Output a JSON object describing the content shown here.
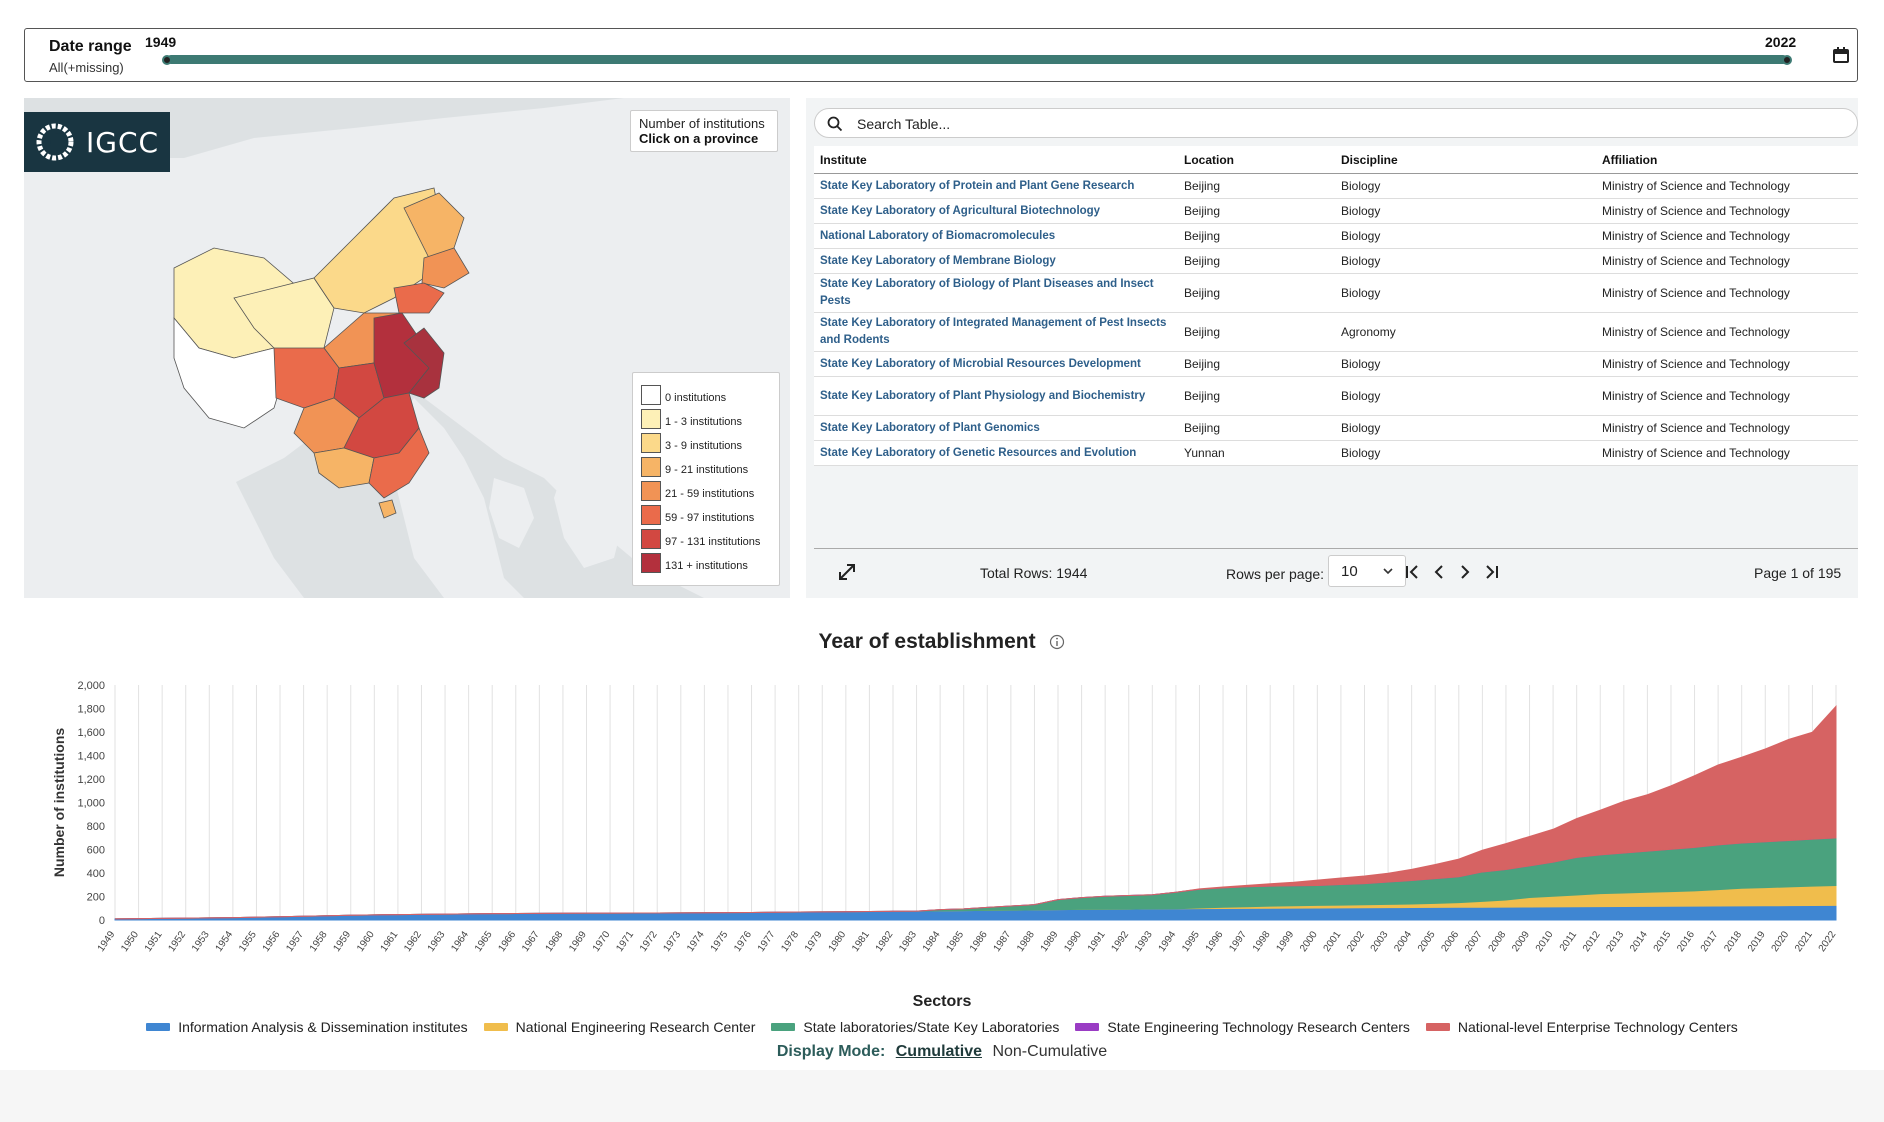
{
  "date_range": {
    "title": "Date range",
    "subtitle": "All(+missing)",
    "min_label": "1949",
    "max_label": "2022",
    "start": 1949,
    "end": 2022,
    "track_color": "#3d7a73"
  },
  "map": {
    "logo_text": "IGCC",
    "tooltip_line1": "Number of institutions",
    "tooltip_line2": "Click on a province",
    "legend": [
      {
        "label": "0 institutions",
        "color": "#ffffff"
      },
      {
        "label": "1 - 3 institutions",
        "color": "#fdf0b7"
      },
      {
        "label": "3 - 9 institutions",
        "color": "#fbd98a"
      },
      {
        "label": "9 - 21 institutions",
        "color": "#f6b466"
      },
      {
        "label": "21 - 59 institutions",
        "color": "#f19355"
      },
      {
        "label": "59 - 97 institutions",
        "color": "#ea6b4b"
      },
      {
        "label": "97 - 131 institutions",
        "color": "#d24841"
      },
      {
        "label": "131 + institutions",
        "color": "#b3303d"
      }
    ]
  },
  "table": {
    "search_placeholder": "Search Table...",
    "columns": [
      "Institute",
      "Location",
      "Discipline",
      "Affiliation"
    ],
    "rows": [
      [
        "State Key Laboratory of Protein and Plant Gene Research",
        "Beijing",
        "Biology",
        "Ministry of Science and Technology"
      ],
      [
        "State Key Laboratory of Agricultural Biotechnology",
        "Beijing",
        "Biology",
        "Ministry of Science and Technology"
      ],
      [
        "National Laboratory of Biomacromolecules",
        "Beijing",
        "Biology",
        "Ministry of Science and Technology"
      ],
      [
        "State Key Laboratory of Membrane Biology",
        "Beijing",
        "Biology",
        "Ministry of Science and Technology"
      ],
      [
        "State Key Laboratory of Biology of Plant Diseases and Insect Pests",
        "Beijing",
        "Biology",
        "Ministry of Science and Technology"
      ],
      [
        "State Key Laboratory of Integrated Management of Pest Insects and Rodents",
        "Beijing",
        "Agronomy",
        "Ministry of Science and Technology"
      ],
      [
        "State Key Laboratory of Microbial Resources Development",
        "Beijing",
        "Biology",
        "Ministry of Science and Technology"
      ],
      [
        "State Key Laboratory of Plant Physiology and Biochemistry",
        "Beijing",
        "Biology",
        "Ministry of Science and Technology"
      ],
      [
        "State Key Laboratory of Plant Genomics",
        "Beijing",
        "Biology",
        "Ministry of Science and Technology"
      ],
      [
        "State Key Laboratory of Genetic Resources and Evolution",
        "Yunnan",
        "Biology",
        "Ministry of Science and Technology"
      ]
    ],
    "total_rows": "Total Rows: 1944",
    "rows_per_page_label": "Rows per page:",
    "rows_per_page_value": "10",
    "page_info": "Page 1 of 195"
  },
  "chart_title": "Year of establishment",
  "chart_data": {
    "type": "area",
    "title": "Year of establishment",
    "xlabel": "",
    "ylabel": "Number of institutions",
    "ylim": [
      0,
      2000
    ],
    "yticks": [
      "0",
      "200",
      "400",
      "600",
      "800",
      "1,000",
      "1,200",
      "1,400",
      "1,600",
      "1,800",
      "2,000"
    ],
    "ytick_values": [
      0,
      200,
      400,
      600,
      800,
      1000,
      1200,
      1400,
      1600,
      1800,
      2000
    ],
    "x_start": 1949,
    "x_end": 2022,
    "x": [
      1949,
      1950,
      1951,
      1952,
      1953,
      1954,
      1955,
      1956,
      1957,
      1958,
      1959,
      1960,
      1961,
      1962,
      1963,
      1964,
      1965,
      1966,
      1967,
      1968,
      1969,
      1970,
      1971,
      1972,
      1973,
      1974,
      1975,
      1976,
      1977,
      1978,
      1979,
      1980,
      1981,
      1982,
      1983,
      1984,
      1985,
      1986,
      1987,
      1988,
      1989,
      1990,
      1991,
      1992,
      1993,
      1994,
      1995,
      1996,
      1997,
      1998,
      1999,
      2000,
      2001,
      2002,
      2003,
      2004,
      2005,
      2006,
      2007,
      2008,
      2009,
      2010,
      2011,
      2012,
      2013,
      2014,
      2015,
      2016,
      2017,
      2018,
      2019,
      2020,
      2021,
      2022
    ],
    "grid": true,
    "stacked": true,
    "legend_title": "Sectors",
    "legend_position": "bottom",
    "series": [
      {
        "name": "Information Analysis & Dissemination institutes",
        "color": "#3f86d2",
        "values": [
          10,
          12,
          14,
          16,
          18,
          20,
          24,
          28,
          32,
          36,
          40,
          44,
          46,
          48,
          50,
          52,
          54,
          55,
          56,
          57,
          58,
          59,
          60,
          60,
          61,
          62,
          63,
          64,
          66,
          68,
          69,
          70,
          72,
          74,
          76,
          78,
          80,
          82,
          84,
          86,
          88,
          90,
          92,
          93,
          95,
          96,
          97,
          98,
          99,
          100,
          101,
          102,
          103,
          104,
          105,
          106,
          107,
          108,
          109,
          110,
          111,
          112,
          113,
          114,
          115,
          116,
          117,
          118,
          119,
          120,
          121,
          122,
          123,
          124
        ]
      },
      {
        "name": "National Engineering Research Center",
        "color": "#f0bd4c",
        "values": [
          0,
          0,
          0,
          0,
          0,
          0,
          0,
          0,
          0,
          0,
          0,
          0,
          0,
          0,
          0,
          0,
          0,
          0,
          0,
          0,
          0,
          0,
          0,
          0,
          0,
          0,
          0,
          0,
          0,
          0,
          0,
          0,
          0,
          0,
          0,
          0,
          0,
          0,
          0,
          0,
          0,
          0,
          0,
          0,
          0,
          0,
          5,
          10,
          14,
          18,
          20,
          22,
          24,
          26,
          28,
          30,
          35,
          40,
          50,
          60,
          80,
          90,
          100,
          110,
          115,
          120,
          125,
          130,
          140,
          150,
          155,
          160,
          165,
          170
        ]
      },
      {
        "name": "State laboratories/State Key Laboratories",
        "color": "#4aa27e",
        "values": [
          0,
          0,
          0,
          0,
          0,
          0,
          0,
          0,
          0,
          0,
          0,
          0,
          0,
          0,
          0,
          0,
          0,
          0,
          0,
          0,
          0,
          0,
          0,
          0,
          0,
          0,
          0,
          0,
          0,
          0,
          0,
          0,
          0,
          0,
          0,
          10,
          15,
          25,
          35,
          45,
          85,
          100,
          110,
          115,
          120,
          140,
          160,
          165,
          170,
          170,
          170,
          170,
          175,
          180,
          190,
          200,
          210,
          220,
          250,
          260,
          270,
          290,
          320,
          330,
          340,
          350,
          360,
          370,
          380,
          385,
          390,
          395,
          400,
          405
        ]
      },
      {
        "name": "State Engineering Technology Research Centers",
        "color": "#9a3cc4",
        "values": [
          0,
          0,
          0,
          0,
          0,
          0,
          0,
          0,
          0,
          0,
          0,
          0,
          0,
          0,
          0,
          0,
          0,
          0,
          0,
          0,
          0,
          0,
          0,
          0,
          0,
          0,
          0,
          0,
          0,
          0,
          0,
          0,
          0,
          0,
          0,
          0,
          0,
          0,
          0,
          0,
          0,
          0,
          0,
          0,
          0,
          0,
          0,
          0,
          0,
          0,
          0,
          0,
          0,
          0,
          0,
          0,
          0,
          0,
          0,
          0,
          0,
          0,
          0,
          0,
          0,
          0,
          0,
          0,
          0,
          0,
          0,
          0,
          0,
          0
        ]
      },
      {
        "name": "National-level Enterprise Technology Centers",
        "color": "#d66363",
        "values": [
          0,
          0,
          0,
          0,
          0,
          0,
          0,
          0,
          0,
          0,
          0,
          0,
          0,
          0,
          0,
          0,
          0,
          0,
          0,
          0,
          0,
          0,
          0,
          0,
          0,
          0,
          0,
          0,
          0,
          0,
          0,
          0,
          0,
          0,
          0,
          0,
          0,
          0,
          0,
          0,
          0,
          0,
          0,
          0,
          0,
          0,
          3,
          8,
          12,
          20,
          30,
          45,
          55,
          65,
          75,
          95,
          120,
          150,
          185,
          220,
          250,
          280,
          330,
          380,
          440,
          480,
          540,
          610,
          680,
          730,
          790,
          860,
          910,
          1120
        ]
      }
    ]
  },
  "display_mode": {
    "label": "Display Mode:",
    "active": "Cumulative",
    "other": "Non-Cumulative"
  }
}
